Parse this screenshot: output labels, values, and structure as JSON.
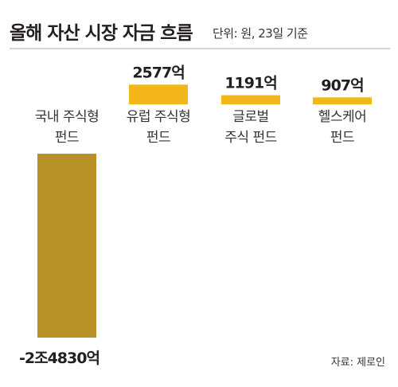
{
  "title": "올해 자산 시장 자금 흐름",
  "subtitle": "단위: 원, 23일 기준",
  "source": "자료: 제로인",
  "colors": {
    "negative_bar": "#b79126",
    "positive_bar": "#f3b71b",
    "divider": "#a7a9ac"
  },
  "chart_data": {
    "type": "bar",
    "title": "올해 자산 시장 자금 흐름",
    "unit": "억원",
    "categories": [
      [
        "국내 주식형",
        "펀드"
      ],
      [
        "유럽 주식형",
        "펀드"
      ],
      [
        "글로벌",
        "주식 펀드"
      ],
      [
        "헬스케어",
        "펀드"
      ]
    ],
    "values": [
      -24830,
      2577,
      1191,
      907
    ],
    "value_labels": [
      "-2조4830억",
      "2577억",
      "1191억",
      "907억"
    ],
    "grid": false
  }
}
